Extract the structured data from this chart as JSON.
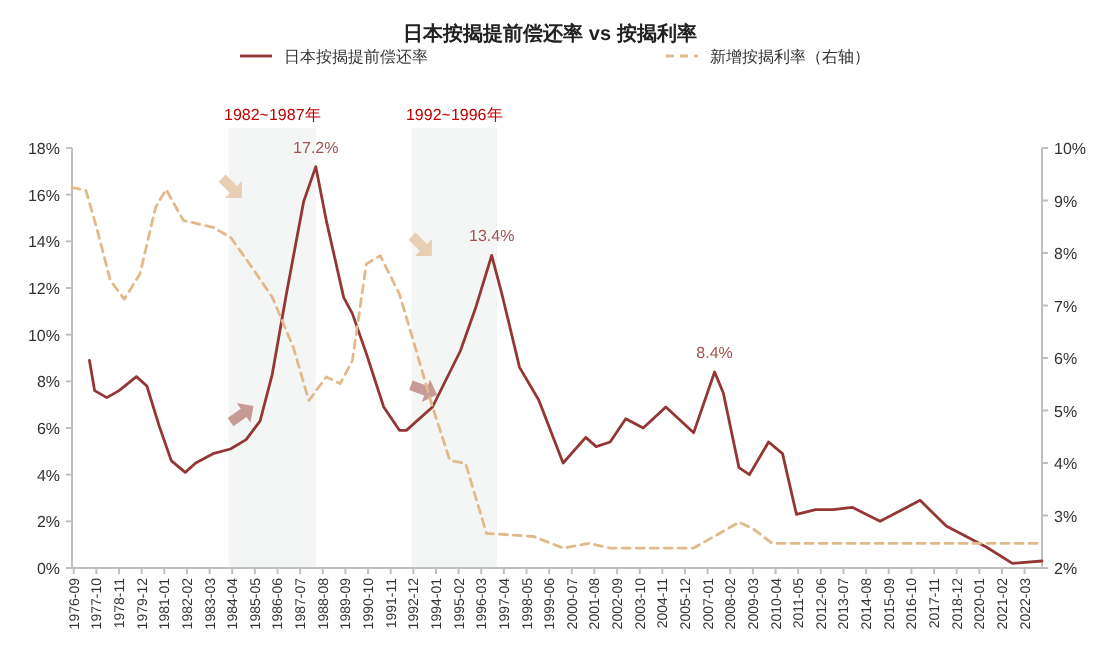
{
  "chart_data": {
    "type": "line",
    "title": "日本按揭提前偿还率 vs 按揭利率",
    "legend": "top",
    "xlim": [
      "1976-08",
      "2023-01"
    ],
    "xticks": [
      "1976-09",
      "1977-10",
      "1978-11",
      "1979-12",
      "1981-01",
      "1982-02",
      "1983-03",
      "1984-04",
      "1985-05",
      "1986-06",
      "1987-07",
      "1988-08",
      "1989-09",
      "1990-10",
      "1991-11",
      "1992-12",
      "1994-01",
      "1995-02",
      "1996-03",
      "1997-04",
      "1998-05",
      "1999-06",
      "2000-07",
      "2001-08",
      "2002-09",
      "2003-10",
      "2004-11",
      "2005-12",
      "2007-01",
      "2008-02",
      "2009-03",
      "2010-04",
      "2011-05",
      "2012-06",
      "2013-07",
      "2014-08",
      "2015-09",
      "2016-10",
      "2017-11",
      "2018-12",
      "2020-01",
      "2021-02",
      "2022-03"
    ],
    "ylim": [
      0,
      18
    ],
    "yticks": [
      {
        "value": 0,
        "label": "0%"
      },
      {
        "value": 2,
        "label": "2%"
      },
      {
        "value": 4,
        "label": "4%"
      },
      {
        "value": 6,
        "label": "6%"
      },
      {
        "value": 8,
        "label": "8%"
      },
      {
        "value": 10,
        "label": "10%"
      },
      {
        "value": 12,
        "label": "12%"
      },
      {
        "value": 14,
        "label": "14%"
      },
      {
        "value": 16,
        "label": "16%"
      },
      {
        "value": 18,
        "label": "18%"
      }
    ],
    "y2lim": [
      2,
      10
    ],
    "y2ticks": [
      {
        "value": 2,
        "label": "2%"
      },
      {
        "value": 3,
        "label": "3%"
      },
      {
        "value": 4,
        "label": "4%"
      },
      {
        "value": 5,
        "label": "5%"
      },
      {
        "value": 6,
        "label": "6%"
      },
      {
        "value": 7,
        "label": "7%"
      },
      {
        "value": 8,
        "label": "8%"
      },
      {
        "value": 9,
        "label": "9%"
      },
      {
        "value": 10,
        "label": "10%"
      }
    ],
    "bands": [
      {
        "axis": "x",
        "from": "1984-02",
        "to": "1988-04",
        "label": "1982~1987年",
        "color": "#f4f6f5"
      },
      {
        "axis": "x",
        "from": "1992-11",
        "to": "1996-12",
        "label": "1992~1996年",
        "color": "#f4f6f5"
      }
    ],
    "annotations": [
      {
        "text": "17.2%",
        "x": "1988-04",
        "y": 17.2
      },
      {
        "text": "13.4%",
        "x": "1996-09",
        "y": 13.4
      },
      {
        "text": "8.4%",
        "x": "2007-05",
        "y": 8.4
      }
    ],
    "series": [
      {
        "name": "日本按揭提前偿还率",
        "color": "#943634",
        "line_style": "solid",
        "x": [
          "1977-06",
          "1977-09",
          "1978-04",
          "1978-11",
          "1979-09",
          "1980-03",
          "1980-10",
          "1981-05",
          "1982-01",
          "1982-07",
          "1983-05",
          "1984-03",
          "1984-12",
          "1985-08",
          "1986-03",
          "1986-11",
          "1987-09",
          "1988-04",
          "1988-10",
          "1989-08",
          "1990-01",
          "1990-09",
          "1991-07",
          "1992-04",
          "1992-08",
          "1993-11",
          "1995-03",
          "1995-12",
          "1996-09",
          "1997-03",
          "1998-01",
          "1998-12",
          "2000-02",
          "2001-03",
          "2001-09",
          "2002-05",
          "2003-02",
          "2003-12",
          "2005-01",
          "2006-05",
          "2007-05",
          "2007-10",
          "2008-07",
          "2009-01",
          "2009-12",
          "2010-08",
          "2011-04",
          "2012-03",
          "2013-01",
          "2013-12",
          "2015-04",
          "2017-03",
          "2018-06",
          "2020-05",
          "2021-08",
          "2023-01"
        ],
        "values": [
          8.9,
          7.6,
          7.3,
          7.6,
          8.2,
          7.8,
          6.1,
          4.6,
          4.1,
          4.5,
          4.9,
          5.1,
          5.5,
          6.3,
          8.3,
          11.7,
          15.7,
          17.2,
          14.9,
          11.6,
          10.9,
          9.2,
          6.9,
          5.9,
          5.9,
          6.9,
          9.3,
          11.2,
          13.4,
          11.7,
          8.6,
          7.2,
          4.5,
          5.6,
          5.2,
          5.4,
          6.4,
          6.0,
          6.9,
          5.8,
          8.4,
          7.5,
          4.3,
          4.0,
          5.4,
          4.9,
          2.3,
          2.5,
          2.5,
          2.6,
          2.0,
          2.9,
          1.8,
          0.9,
          0.2,
          0.3
        ]
      },
      {
        "name": "新增按揭利率（右轴）",
        "color": "#e2b98a",
        "axis": "y2",
        "line_style": "dashed",
        "x": [
          "1976-08",
          "1977-04",
          "1977-10",
          "1978-06",
          "1979-02",
          "1979-11",
          "1980-08",
          "1981-02",
          "1981-12",
          "1982-09",
          "1983-05",
          "1984-03",
          "1985-02",
          "1986-03",
          "1987-03",
          "1987-12",
          "1988-10",
          "1989-06",
          "1990-01",
          "1990-09",
          "1991-05",
          "1992-04",
          "1992-12",
          "1993-11",
          "1994-09",
          "1995-06",
          "1996-06",
          "1998-09",
          "2000-02",
          "2001-05",
          "2002-05",
          "2006-05",
          "2008-07",
          "2009-03",
          "2010-02",
          "2023-01"
        ],
        "values": [
          9.25,
          9.19,
          8.5,
          7.48,
          7.12,
          7.6,
          8.87,
          9.21,
          8.62,
          8.55,
          8.49,
          8.3,
          7.79,
          7.16,
          6.21,
          5.19,
          5.64,
          5.51,
          5.95,
          7.79,
          7.95,
          7.22,
          6.33,
          5.07,
          4.05,
          3.99,
          2.66,
          2.6,
          2.38,
          2.47,
          2.38,
          2.38,
          2.87,
          2.75,
          2.47,
          2.47
        ]
      }
    ]
  }
}
